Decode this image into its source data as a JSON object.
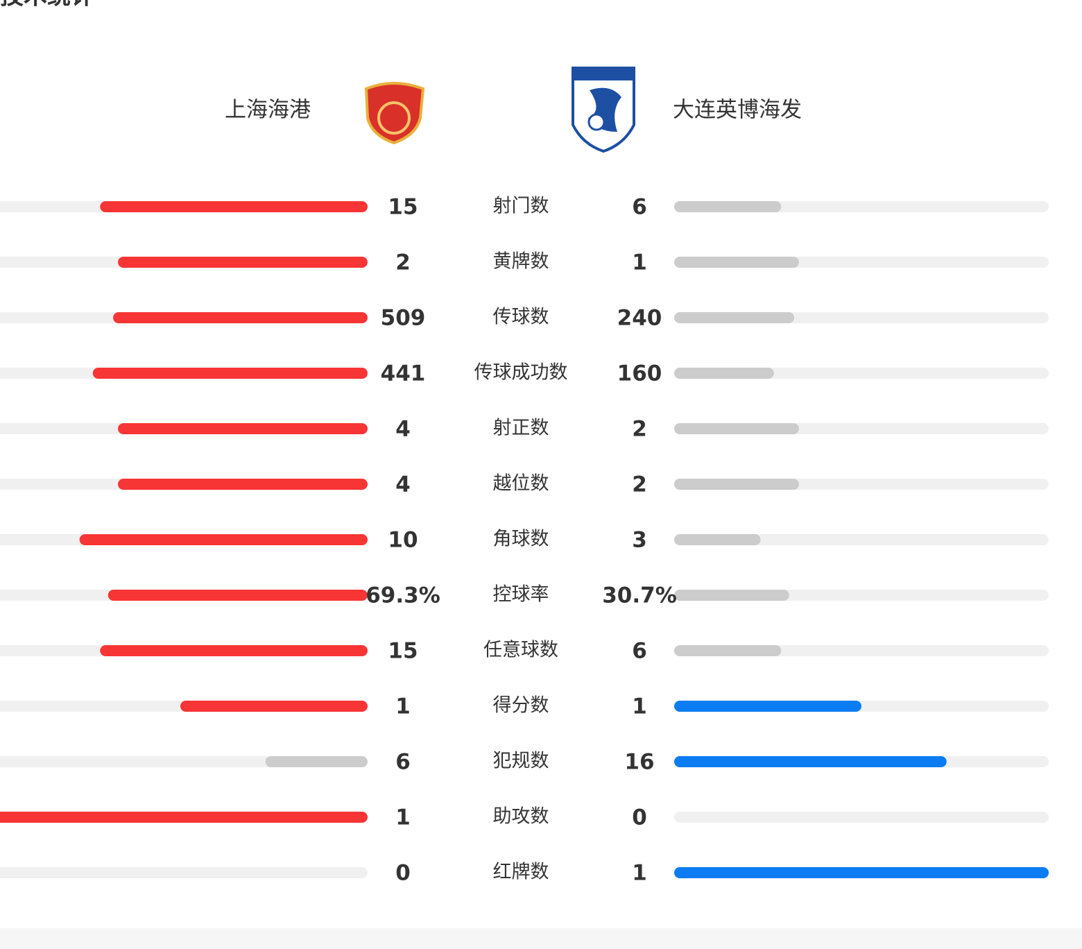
{
  "header": {
    "title": "技术统计"
  },
  "teams": {
    "home": "上海海港",
    "away": "大连英博海发"
  },
  "colors": {
    "home": "#f83535",
    "away": "#0b7cf1",
    "neutral": "#cccccc",
    "track": "#f0f0f0"
  },
  "stats": [
    {
      "label": "射门数",
      "home": 15,
      "away": 6
    },
    {
      "label": "黄牌数",
      "home": 2,
      "away": 1
    },
    {
      "label": "传球数",
      "home": 509,
      "away": 240
    },
    {
      "label": "传球成功数",
      "home": 441,
      "away": 160
    },
    {
      "label": "射正数",
      "home": 4,
      "away": 2
    },
    {
      "label": "越位数",
      "home": 4,
      "away": 2
    },
    {
      "label": "角球数",
      "home": 10,
      "away": 3
    },
    {
      "label": "控球率",
      "home": 69.3,
      "away": 30.7,
      "home_label": "69.3%",
      "away_label": "30.7%"
    },
    {
      "label": "任意球数",
      "home": 15,
      "away": 6
    },
    {
      "label": "得分数",
      "home": 1,
      "away": 1
    },
    {
      "label": "犯规数",
      "home": 6,
      "away": 16
    },
    {
      "label": "助攻数",
      "home": 1,
      "away": 0
    },
    {
      "label": "红牌数",
      "home": 0,
      "away": 1
    }
  ]
}
